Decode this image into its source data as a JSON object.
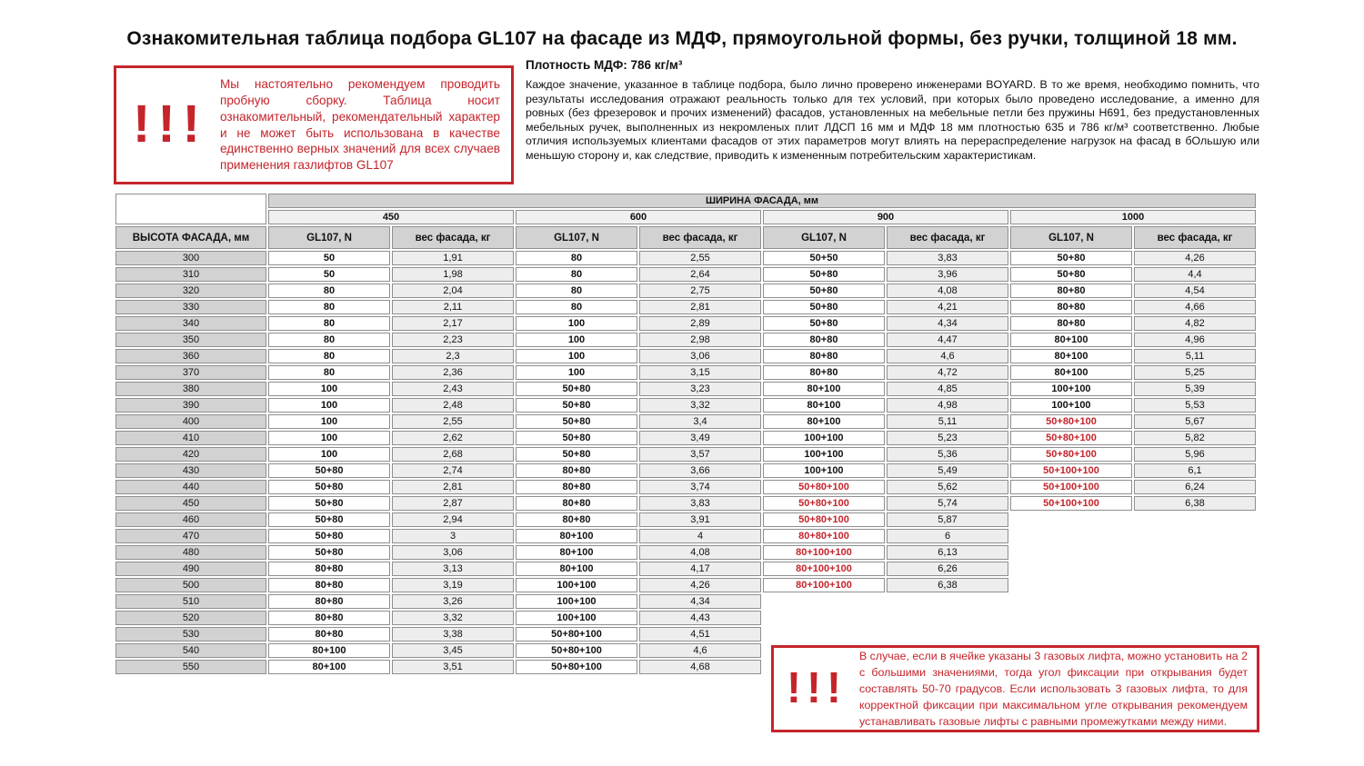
{
  "page": {
    "title": "Ознакомительная таблица подбора GL107 на фасаде из МДФ, прямоугольной формы, без ручки, толщиной 18 мм."
  },
  "colors": {
    "accent_red": "#c5242b",
    "header_gray": "#d2d2d2",
    "cell_light": "#ededed",
    "border_gray": "#8f8f8f"
  },
  "warning_top": {
    "icon": "!!!",
    "text": "Мы настоятельно рекомендуем проводить пробную сборку. Таблица носит ознакомительный, рекомендательный характер и не может быть использована в качестве единственно верных значений для всех случаев применения газлифтов GL107"
  },
  "intro": {
    "density_label": "Плотность МДФ: 786 кг/м³",
    "body": "Каждое значение, указанное в таблице подбора, было лично проверено инженерами BOYARD. В то же время, необходимо помнить, что результаты исследования отражают реальность только для тех условий, при которых было проведено исследование, а именно для ровных (без фрезеровок и прочих изменений) фасадов, установленных на мебельные петли без пружины Н691, без предустановленных мебельных ручек, выполненных из некромленых плит ЛДСП 16 мм и МДФ 18 мм плотностью 635 и 786 кг/м³ соответственно. Любые отличия используемых клиентами фасадов от этих параметров могут влиять на перераспределение нагрузок на фасад в бОльшую или меньшую сторону и, как следствие, приводить к измененным потребительским характеристикам."
  },
  "table": {
    "width_header": "ШИРИНА ФАСАДА, мм",
    "corner_label": "ВЫСОТА ФАСАДА, мм",
    "width_groups": [
      "450",
      "600",
      "900",
      "1000"
    ],
    "sub_headers": [
      "GL107, N",
      "вес фасада, кг"
    ],
    "rows": [
      {
        "h": "300",
        "c": [
          {
            "gl": "50",
            "w": "1,91"
          },
          {
            "gl": "80",
            "w": "2,55"
          },
          {
            "gl": "50+50",
            "w": "3,83"
          },
          {
            "gl": "50+80",
            "w": "4,26"
          }
        ]
      },
      {
        "h": "310",
        "c": [
          {
            "gl": "50",
            "w": "1,98"
          },
          {
            "gl": "80",
            "w": "2,64"
          },
          {
            "gl": "50+80",
            "w": "3,96"
          },
          {
            "gl": "50+80",
            "w": "4,4"
          }
        ]
      },
      {
        "h": "320",
        "c": [
          {
            "gl": "80",
            "w": "2,04"
          },
          {
            "gl": "80",
            "w": "2,75"
          },
          {
            "gl": "50+80",
            "w": "4,08"
          },
          {
            "gl": "80+80",
            "w": "4,54"
          }
        ]
      },
      {
        "h": "330",
        "c": [
          {
            "gl": "80",
            "w": "2,11"
          },
          {
            "gl": "80",
            "w": "2,81"
          },
          {
            "gl": "50+80",
            "w": "4,21"
          },
          {
            "gl": "80+80",
            "w": "4,66"
          }
        ]
      },
      {
        "h": "340",
        "c": [
          {
            "gl": "80",
            "w": "2,17"
          },
          {
            "gl": "100",
            "w": "2,89"
          },
          {
            "gl": "50+80",
            "w": "4,34"
          },
          {
            "gl": "80+80",
            "w": "4,82"
          }
        ]
      },
      {
        "h": "350",
        "c": [
          {
            "gl": "80",
            "w": "2,23"
          },
          {
            "gl": "100",
            "w": "2,98"
          },
          {
            "gl": "80+80",
            "w": "4,47"
          },
          {
            "gl": "80+100",
            "w": "4,96"
          }
        ]
      },
      {
        "h": "360",
        "c": [
          {
            "gl": "80",
            "w": "2,3"
          },
          {
            "gl": "100",
            "w": "3,06"
          },
          {
            "gl": "80+80",
            "w": "4,6"
          },
          {
            "gl": "80+100",
            "w": "5,11"
          }
        ]
      },
      {
        "h": "370",
        "c": [
          {
            "gl": "80",
            "w": "2,36"
          },
          {
            "gl": "100",
            "w": "3,15"
          },
          {
            "gl": "80+80",
            "w": "4,72"
          },
          {
            "gl": "80+100",
            "w": "5,25"
          }
        ]
      },
      {
        "h": "380",
        "c": [
          {
            "gl": "100",
            "w": "2,43"
          },
          {
            "gl": "50+80",
            "w": "3,23"
          },
          {
            "gl": "80+100",
            "w": "4,85"
          },
          {
            "gl": "100+100",
            "w": "5,39"
          }
        ]
      },
      {
        "h": "390",
        "c": [
          {
            "gl": "100",
            "w": "2,48"
          },
          {
            "gl": "50+80",
            "w": "3,32"
          },
          {
            "gl": "80+100",
            "w": "4,98"
          },
          {
            "gl": "100+100",
            "w": "5,53"
          }
        ]
      },
      {
        "h": "400",
        "c": [
          {
            "gl": "100",
            "w": "2,55"
          },
          {
            "gl": "50+80",
            "w": "3,4"
          },
          {
            "gl": "80+100",
            "w": "5,11"
          },
          {
            "gl": "50+80+100",
            "w": "5,67",
            "red": true
          }
        ]
      },
      {
        "h": "410",
        "c": [
          {
            "gl": "100",
            "w": "2,62"
          },
          {
            "gl": "50+80",
            "w": "3,49"
          },
          {
            "gl": "100+100",
            "w": "5,23"
          },
          {
            "gl": "50+80+100",
            "w": "5,82",
            "red": true
          }
        ]
      },
      {
        "h": "420",
        "c": [
          {
            "gl": "100",
            "w": "2,68"
          },
          {
            "gl": "50+80",
            "w": "3,57"
          },
          {
            "gl": "100+100",
            "w": "5,36"
          },
          {
            "gl": "50+80+100",
            "w": "5,96",
            "red": true
          }
        ]
      },
      {
        "h": "430",
        "c": [
          {
            "gl": "50+80",
            "w": "2,74"
          },
          {
            "gl": "80+80",
            "w": "3,66"
          },
          {
            "gl": "100+100",
            "w": "5,49"
          },
          {
            "gl": "50+100+100",
            "w": "6,1",
            "red": true
          }
        ]
      },
      {
        "h": "440",
        "c": [
          {
            "gl": "50+80",
            "w": "2,81"
          },
          {
            "gl": "80+80",
            "w": "3,74"
          },
          {
            "gl": "50+80+100",
            "w": "5,62",
            "red": true
          },
          {
            "gl": "50+100+100",
            "w": "6,24",
            "red": true
          }
        ]
      },
      {
        "h": "450",
        "c": [
          {
            "gl": "50+80",
            "w": "2,87"
          },
          {
            "gl": "80+80",
            "w": "3,83"
          },
          {
            "gl": "50+80+100",
            "w": "5,74",
            "red": true
          },
          {
            "gl": "50+100+100",
            "w": "6,38",
            "red": true
          }
        ]
      },
      {
        "h": "460",
        "c": [
          {
            "gl": "50+80",
            "w": "2,94"
          },
          {
            "gl": "80+80",
            "w": "3,91"
          },
          {
            "gl": "50+80+100",
            "w": "5,87",
            "red": true
          },
          null
        ]
      },
      {
        "h": "470",
        "c": [
          {
            "gl": "50+80",
            "w": "3"
          },
          {
            "gl": "80+100",
            "w": "4"
          },
          {
            "gl": "80+80+100",
            "w": "6",
            "red": true
          },
          null
        ]
      },
      {
        "h": "480",
        "c": [
          {
            "gl": "50+80",
            "w": "3,06"
          },
          {
            "gl": "80+100",
            "w": "4,08"
          },
          {
            "gl": "80+100+100",
            "w": "6,13",
            "red": true
          },
          null
        ]
      },
      {
        "h": "490",
        "c": [
          {
            "gl": "80+80",
            "w": "3,13"
          },
          {
            "gl": "80+100",
            "w": "4,17"
          },
          {
            "gl": "80+100+100",
            "w": "6,26",
            "red": true
          },
          null
        ]
      },
      {
        "h": "500",
        "c": [
          {
            "gl": "80+80",
            "w": "3,19"
          },
          {
            "gl": "100+100",
            "w": "4,26"
          },
          {
            "gl": "80+100+100",
            "w": "6,38",
            "red": true
          },
          null
        ]
      },
      {
        "h": "510",
        "c": [
          {
            "gl": "80+80",
            "w": "3,26"
          },
          {
            "gl": "100+100",
            "w": "4,34"
          },
          null,
          null
        ]
      },
      {
        "h": "520",
        "c": [
          {
            "gl": "80+80",
            "w": "3,32"
          },
          {
            "gl": "100+100",
            "w": "4,43"
          },
          null,
          null
        ]
      },
      {
        "h": "530",
        "c": [
          {
            "gl": "80+80",
            "w": "3,38"
          },
          {
            "gl": "50+80+100",
            "w": "4,51"
          },
          null,
          null
        ]
      },
      {
        "h": "540",
        "c": [
          {
            "gl": "80+100",
            "w": "3,45"
          },
          {
            "gl": "50+80+100",
            "w": "4,6"
          },
          null,
          null
        ]
      },
      {
        "h": "550",
        "c": [
          {
            "gl": "80+100",
            "w": "3,51"
          },
          {
            "gl": "50+80+100",
            "w": "4,68"
          },
          null,
          null
        ]
      }
    ]
  },
  "warning_bottom": {
    "icon": "!!!",
    "text": "В случае, если в ячейке указаны 3 газовых лифта, можно установить на 2 с большими значениями, тогда угол фиксации при открывания будет составлять 50-70 градусов. Если использовать 3 газовых лифта, то для корректной фиксации при максимальном угле открывания рекомендуем устанавливать газовые лифты с равными промежутками между ними."
  }
}
